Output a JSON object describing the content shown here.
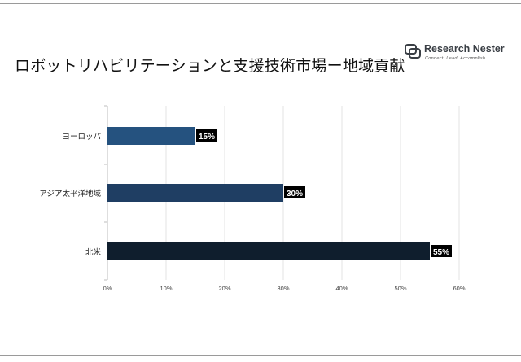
{
  "header": {
    "title": "ロボットリハビリテーションと支援技術市場ー地域貢献"
  },
  "logo": {
    "name": "Research Nester",
    "tagline": "Connect. Lead. Accomplish",
    "mark_icon": "research-nester-logo-icon"
  },
  "chart_data": {
    "type": "bar",
    "orientation": "horizontal",
    "categories": [
      "ヨーロッパ",
      "アジア太平洋地域",
      "北米"
    ],
    "values": [
      15,
      30,
      55
    ],
    "value_labels": [
      "15%",
      "30%",
      "55%"
    ],
    "bar_colors": [
      "#25527f",
      "#1f3e63",
      "#0f1e2d"
    ],
    "xlim": [
      0,
      60
    ],
    "xticks": [
      0,
      10,
      20,
      30,
      40,
      50,
      60
    ],
    "xtick_labels": [
      "0%",
      "10%",
      "20%",
      "30%",
      "40%",
      "50%",
      "60%"
    ],
    "grid": true,
    "title": "",
    "xlabel": "",
    "ylabel": ""
  }
}
